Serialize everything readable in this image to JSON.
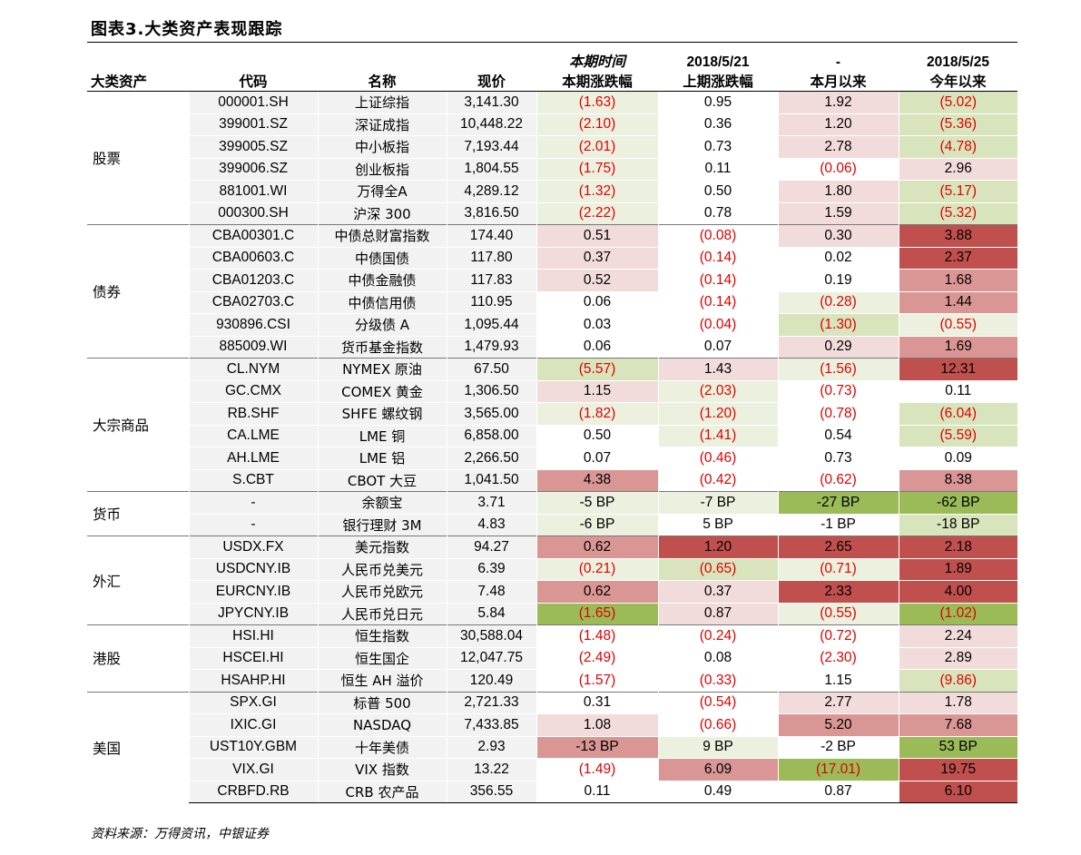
{
  "title": "图表3.大类资产表现跟踪",
  "source": "资料来源：万得资讯，中银证券",
  "header": {
    "row1": [
      "",
      "",
      "",
      "",
      "本期时间",
      "2018/5/21",
      "-",
      "2018/5/25"
    ],
    "row2": [
      "大类资产",
      "代码",
      "名称",
      "现价",
      "本期涨跌幅",
      "上期涨跌幅",
      "本月以来",
      "今年以来"
    ]
  },
  "colors": {
    "dark_red": "#c0504d",
    "mid_red": "#da9694",
    "light_pink": "#f2dcdb",
    "light_green": "#d8e4bc",
    "pale_green": "#ebf1de",
    "green": "#9bbb59",
    "row_gray": "#f2f2f2",
    "negative_text": "#e00000"
  },
  "groups": [
    {
      "name": "股票",
      "rows": [
        {
          "code": "000001.SH",
          "name": "上证综指",
          "price": "3,141.30",
          "cells": [
            {
              "v": "(1.63)",
              "c": "pale_green",
              "neg": true
            },
            {
              "v": "0.95",
              "c": "",
              "neg": false
            },
            {
              "v": "1.92",
              "c": "light_pink",
              "neg": false
            },
            {
              "v": "(5.02)",
              "c": "light_green",
              "neg": true
            }
          ]
        },
        {
          "code": "399001.SZ",
          "name": "深证成指",
          "price": "10,448.22",
          "cells": [
            {
              "v": "(2.10)",
              "c": "pale_green",
              "neg": true
            },
            {
              "v": "0.36",
              "c": "",
              "neg": false
            },
            {
              "v": "1.20",
              "c": "light_pink",
              "neg": false
            },
            {
              "v": "(5.36)",
              "c": "light_green",
              "neg": true
            }
          ]
        },
        {
          "code": "399005.SZ",
          "name": "中小板指",
          "price": "7,193.44",
          "cells": [
            {
              "v": "(2.01)",
              "c": "pale_green",
              "neg": true
            },
            {
              "v": "0.73",
              "c": "",
              "neg": false
            },
            {
              "v": "2.78",
              "c": "light_pink",
              "neg": false
            },
            {
              "v": "(4.78)",
              "c": "light_green",
              "neg": true
            }
          ]
        },
        {
          "code": "399006.SZ",
          "name": "创业板指",
          "price": "1,804.55",
          "cells": [
            {
              "v": "(1.75)",
              "c": "pale_green",
              "neg": true
            },
            {
              "v": "0.11",
              "c": "",
              "neg": false
            },
            {
              "v": "(0.06)",
              "c": "",
              "neg": true
            },
            {
              "v": "2.96",
              "c": "light_pink",
              "neg": false
            }
          ]
        },
        {
          "code": "881001.WI",
          "name": "万得全A",
          "price": "4,289.12",
          "cells": [
            {
              "v": "(1.32)",
              "c": "pale_green",
              "neg": true
            },
            {
              "v": "0.50",
              "c": "",
              "neg": false
            },
            {
              "v": "1.80",
              "c": "light_pink",
              "neg": false
            },
            {
              "v": "(5.17)",
              "c": "light_green",
              "neg": true
            }
          ]
        },
        {
          "code": "000300.SH",
          "name": "沪深 300",
          "price": "3,816.50",
          "cells": [
            {
              "v": "(2.22)",
              "c": "pale_green",
              "neg": true
            },
            {
              "v": "0.78",
              "c": "",
              "neg": false
            },
            {
              "v": "1.59",
              "c": "light_pink",
              "neg": false
            },
            {
              "v": "(5.32)",
              "c": "light_green",
              "neg": true
            }
          ]
        }
      ]
    },
    {
      "name": "债券",
      "rows": [
        {
          "code": "CBA00301.C",
          "name": "中债总财富指数",
          "price": "174.40",
          "cells": [
            {
              "v": "0.51",
              "c": "light_pink",
              "neg": false
            },
            {
              "v": "(0.08)",
              "c": "",
              "neg": true
            },
            {
              "v": "0.30",
              "c": "light_pink",
              "neg": false
            },
            {
              "v": "3.88",
              "c": "dark_red",
              "neg": false
            }
          ]
        },
        {
          "code": "CBA00603.C",
          "name": "中债国债",
          "price": "117.80",
          "cells": [
            {
              "v": "0.37",
              "c": "light_pink",
              "neg": false
            },
            {
              "v": "(0.14)",
              "c": "",
              "neg": true
            },
            {
              "v": "0.02",
              "c": "",
              "neg": false
            },
            {
              "v": "2.37",
              "c": "dark_red",
              "neg": false
            }
          ]
        },
        {
          "code": "CBA01203.C",
          "name": "中债金融债",
          "price": "117.83",
          "cells": [
            {
              "v": "0.52",
              "c": "light_pink",
              "neg": false
            },
            {
              "v": "(0.14)",
              "c": "",
              "neg": true
            },
            {
              "v": "0.19",
              "c": "",
              "neg": false
            },
            {
              "v": "1.68",
              "c": "mid_red",
              "neg": false
            }
          ]
        },
        {
          "code": "CBA02703.C",
          "name": "中债信用债",
          "price": "110.95",
          "cells": [
            {
              "v": "0.06",
              "c": "",
              "neg": false
            },
            {
              "v": "(0.14)",
              "c": "",
              "neg": true
            },
            {
              "v": "(0.28)",
              "c": "pale_green",
              "neg": true
            },
            {
              "v": "1.44",
              "c": "mid_red",
              "neg": false
            }
          ]
        },
        {
          "code": "930896.CSI",
          "name": "分级债 A",
          "price": "1,095.44",
          "cells": [
            {
              "v": "0.03",
              "c": "",
              "neg": false
            },
            {
              "v": "(0.04)",
              "c": "",
              "neg": true
            },
            {
              "v": "(1.30)",
              "c": "light_green",
              "neg": true
            },
            {
              "v": "(0.55)",
              "c": "pale_green",
              "neg": true
            }
          ]
        },
        {
          "code": "885009.WI",
          "name": "货币基金指数",
          "price": "1,479.93",
          "cells": [
            {
              "v": "0.06",
              "c": "",
              "neg": false
            },
            {
              "v": "0.07",
              "c": "",
              "neg": false
            },
            {
              "v": "0.29",
              "c": "light_pink",
              "neg": false
            },
            {
              "v": "1.69",
              "c": "mid_red",
              "neg": false
            }
          ]
        }
      ]
    },
    {
      "name": "大宗商品",
      "rows": [
        {
          "code": "CL.NYM",
          "name": "NYMEX 原油",
          "price": "67.50",
          "cells": [
            {
              "v": "(5.57)",
              "c": "light_green",
              "neg": true
            },
            {
              "v": "1.43",
              "c": "light_pink",
              "neg": false
            },
            {
              "v": "(1.56)",
              "c": "pale_green",
              "neg": true
            },
            {
              "v": "12.31",
              "c": "dark_red",
              "neg": false
            }
          ]
        },
        {
          "code": "GC.CMX",
          "name": "COMEX 黄金",
          "price": "1,306.50",
          "cells": [
            {
              "v": "1.15",
              "c": "light_pink",
              "neg": false
            },
            {
              "v": "(2.03)",
              "c": "pale_green",
              "neg": true
            },
            {
              "v": "(0.73)",
              "c": "",
              "neg": true
            },
            {
              "v": "0.11",
              "c": "",
              "neg": false
            }
          ]
        },
        {
          "code": "RB.SHF",
          "name": "SHFE 螺纹钢",
          "price": "3,565.00",
          "cells": [
            {
              "v": "(1.82)",
              "c": "pale_green",
              "neg": true
            },
            {
              "v": "(1.20)",
              "c": "pale_green",
              "neg": true
            },
            {
              "v": "(0.78)",
              "c": "",
              "neg": true
            },
            {
              "v": "(6.04)",
              "c": "light_green",
              "neg": true
            }
          ]
        },
        {
          "code": "CA.LME",
          "name": "LME 铜",
          "price": "6,858.00",
          "cells": [
            {
              "v": "0.50",
              "c": "",
              "neg": false
            },
            {
              "v": "(1.41)",
              "c": "pale_green",
              "neg": true
            },
            {
              "v": "0.54",
              "c": "",
              "neg": false
            },
            {
              "v": "(5.59)",
              "c": "light_green",
              "neg": true
            }
          ]
        },
        {
          "code": "AH.LME",
          "name": "LME 铝",
          "price": "2,266.50",
          "cells": [
            {
              "v": "0.07",
              "c": "",
              "neg": false
            },
            {
              "v": "(0.46)",
              "c": "",
              "neg": true
            },
            {
              "v": "0.73",
              "c": "",
              "neg": false
            },
            {
              "v": "0.09",
              "c": "",
              "neg": false
            }
          ]
        },
        {
          "code": "S.CBT",
          "name": "CBOT 大豆",
          "price": "1,041.50",
          "cells": [
            {
              "v": "4.38",
              "c": "mid_red",
              "neg": false
            },
            {
              "v": "(0.42)",
              "c": "",
              "neg": true
            },
            {
              "v": "(0.62)",
              "c": "",
              "neg": true
            },
            {
              "v": "8.38",
              "c": "mid_red",
              "neg": false
            }
          ]
        }
      ]
    },
    {
      "name": "货币",
      "rows": [
        {
          "code": "-",
          "name": "余额宝",
          "price": "3.71",
          "cells": [
            {
              "v": "-5 BP",
              "c": "pale_green",
              "neg": false
            },
            {
              "v": "-7 BP",
              "c": "pale_green",
              "neg": false
            },
            {
              "v": "-27 BP",
              "c": "green",
              "neg": false
            },
            {
              "v": "-62 BP",
              "c": "green",
              "neg": false
            }
          ]
        },
        {
          "code": "-",
          "name": "银行理财 3M",
          "price": "4.83",
          "cells": [
            {
              "v": "-6 BP",
              "c": "pale_green",
              "neg": false
            },
            {
              "v": "5 BP",
              "c": "",
              "neg": false
            },
            {
              "v": "-1 BP",
              "c": "",
              "neg": false
            },
            {
              "v": "-18 BP",
              "c": "light_green",
              "neg": false
            }
          ]
        }
      ]
    },
    {
      "name": "外汇",
      "rows": [
        {
          "code": "USDX.FX",
          "name": "美元指数",
          "price": "94.27",
          "cells": [
            {
              "v": "0.62",
              "c": "mid_red",
              "neg": false
            },
            {
              "v": "1.20",
              "c": "dark_red",
              "neg": false
            },
            {
              "v": "2.65",
              "c": "dark_red",
              "neg": false
            },
            {
              "v": "2.18",
              "c": "dark_red",
              "neg": false
            }
          ]
        },
        {
          "code": "USDCNY.IB",
          "name": "人民币兑美元",
          "price": "6.39",
          "cells": [
            {
              "v": "(0.21)",
              "c": "pale_green",
              "neg": true
            },
            {
              "v": "(0.65)",
              "c": "light_green",
              "neg": true
            },
            {
              "v": "(0.71)",
              "c": "pale_green",
              "neg": true
            },
            {
              "v": "1.89",
              "c": "dark_red",
              "neg": false
            }
          ]
        },
        {
          "code": "EURCNY.IB",
          "name": "人民币兑欧元",
          "price": "7.48",
          "cells": [
            {
              "v": "0.62",
              "c": "mid_red",
              "neg": false
            },
            {
              "v": "0.37",
              "c": "light_pink",
              "neg": false
            },
            {
              "v": "2.33",
              "c": "dark_red",
              "neg": false
            },
            {
              "v": "4.00",
              "c": "dark_red",
              "neg": false
            }
          ]
        },
        {
          "code": "JPYCNY.IB",
          "name": "人民币兑日元",
          "price": "5.84",
          "cells": [
            {
              "v": "(1.65)",
              "c": "green",
              "neg": true
            },
            {
              "v": "0.87",
              "c": "light_pink",
              "neg": false
            },
            {
              "v": "(0.55)",
              "c": "pale_green",
              "neg": true
            },
            {
              "v": "(1.02)",
              "c": "green",
              "neg": true
            }
          ]
        }
      ]
    },
    {
      "name": "港股",
      "rows": [
        {
          "code": "HSI.HI",
          "name": "恒生指数",
          "price": "30,588.04",
          "cells": [
            {
              "v": "(1.48)",
              "c": "",
              "neg": true
            },
            {
              "v": "(0.24)",
              "c": "",
              "neg": true
            },
            {
              "v": "(0.72)",
              "c": "",
              "neg": true
            },
            {
              "v": "2.24",
              "c": "light_pink",
              "neg": false
            }
          ]
        },
        {
          "code": "HSCEI.HI",
          "name": "恒生国企",
          "price": "12,047.75",
          "cells": [
            {
              "v": "(2.49)",
              "c": "",
              "neg": true
            },
            {
              "v": "0.08",
              "c": "",
              "neg": false
            },
            {
              "v": "(2.30)",
              "c": "",
              "neg": true
            },
            {
              "v": "2.89",
              "c": "light_pink",
              "neg": false
            }
          ]
        },
        {
          "code": "HSAHP.HI",
          "name": "恒生 AH 溢价",
          "price": "120.49",
          "cells": [
            {
              "v": "(1.57)",
              "c": "",
              "neg": true
            },
            {
              "v": "(0.33)",
              "c": "",
              "neg": true
            },
            {
              "v": "1.15",
              "c": "",
              "neg": false
            },
            {
              "v": "(9.86)",
              "c": "light_green",
              "neg": true
            }
          ]
        }
      ]
    },
    {
      "name": "美国",
      "rows": [
        {
          "code": "SPX.GI",
          "name": "标普 500",
          "price": "2,721.33",
          "cells": [
            {
              "v": "0.31",
              "c": "",
              "neg": false
            },
            {
              "v": "(0.54)",
              "c": "",
              "neg": true
            },
            {
              "v": "2.77",
              "c": "light_pink",
              "neg": false
            },
            {
              "v": "1.78",
              "c": "light_pink",
              "neg": false
            }
          ]
        },
        {
          "code": "IXIC.GI",
          "name": "NASDAQ",
          "price": "7,433.85",
          "cells": [
            {
              "v": "1.08",
              "c": "light_pink",
              "neg": false
            },
            {
              "v": "(0.66)",
              "c": "",
              "neg": true
            },
            {
              "v": "5.20",
              "c": "mid_red",
              "neg": false
            },
            {
              "v": "7.68",
              "c": "mid_red",
              "neg": false
            }
          ]
        },
        {
          "code": "UST10Y.GBM",
          "name": "十年美债",
          "price": "2.93",
          "cells": [
            {
              "v": "-13 BP",
              "c": "mid_red",
              "neg": false
            },
            {
              "v": "9 BP",
              "c": "pale_green",
              "neg": false
            },
            {
              "v": "-2 BP",
              "c": "",
              "neg": false
            },
            {
              "v": "53 BP",
              "c": "green",
              "neg": false
            }
          ]
        },
        {
          "code": "VIX.GI",
          "name": "VIX 指数",
          "price": "13.22",
          "cells": [
            {
              "v": "(1.49)",
              "c": "",
              "neg": true
            },
            {
              "v": "6.09",
              "c": "mid_red",
              "neg": false
            },
            {
              "v": "(17.01)",
              "c": "green",
              "neg": true
            },
            {
              "v": "19.75",
              "c": "dark_red",
              "neg": false
            }
          ]
        },
        {
          "code": "CRBFD.RB",
          "name": "CRB 农产品",
          "price": "356.55",
          "cells": [
            {
              "v": "0.11",
              "c": "",
              "neg": false
            },
            {
              "v": "0.49",
              "c": "",
              "neg": false
            },
            {
              "v": "0.87",
              "c": "",
              "neg": false
            },
            {
              "v": "6.10",
              "c": "dark_red",
              "neg": false
            }
          ]
        }
      ]
    }
  ]
}
